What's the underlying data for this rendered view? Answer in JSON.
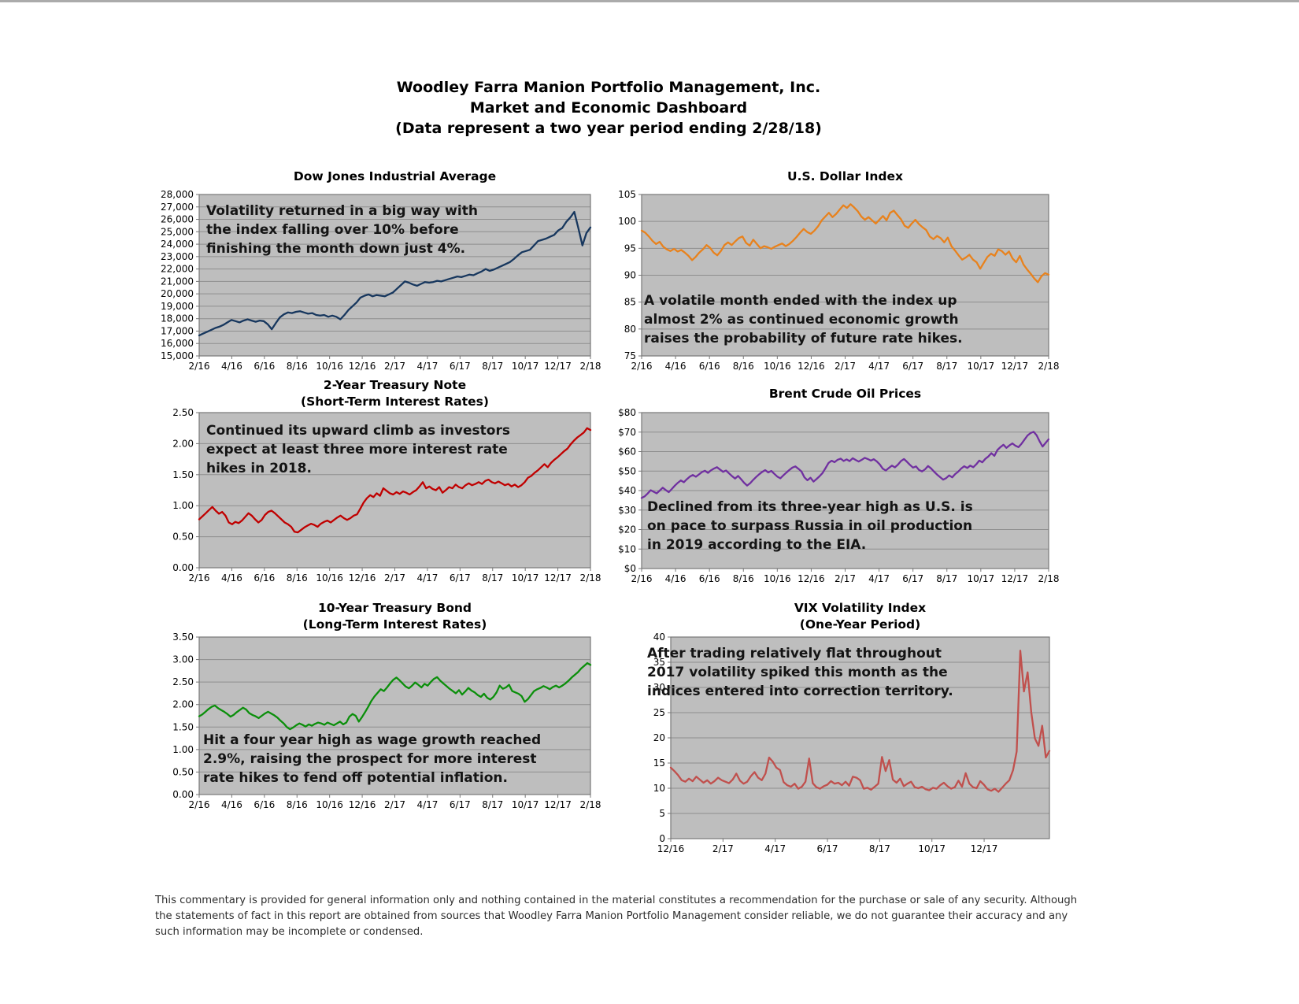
{
  "header": {
    "line1": "Woodley Farra Manion Portfolio Management, Inc.",
    "line2": "Market and Economic Dashboard",
    "line3": "(Data represent a two year period ending 2/28/18)"
  },
  "footer_lines": [
    "This commentary is provided for general information only and nothing contained in the material constitutes a recommendation for the purchase or sale of any security. Although",
    "the statements of fact in this report are obtained from sources that Woodley Farra Manion Portfolio Management consider reliable, we do not guarantee their accuracy and any",
    "such information may be incomplete or condensed."
  ],
  "style": {
    "plot_bg": "#BEBEBE",
    "gridline": "#8E8E8E",
    "plot_border": "#777777",
    "tick": "#777777"
  },
  "chart_data": [
    {
      "type": "line",
      "title": "Dow Jones Industrial Average",
      "annotation_lines": [
        "Volatility returned in a big way with",
        "the index falling over 10% before",
        "finishing the month down just 4%."
      ],
      "color": "#17375E",
      "ylim": [
        15000,
        28000
      ],
      "y_step": 1000,
      "y_format": "comma",
      "x_labels": [
        "2/16",
        "4/16",
        "6/16",
        "8/16",
        "10/16",
        "12/16",
        "2/17",
        "4/17",
        "6/17",
        "8/17",
        "10/17",
        "12/17",
        "2/18"
      ],
      "x_span": "spread",
      "values": [
        16650,
        16800,
        16950,
        17100,
        17250,
        17350,
        17500,
        17700,
        17900,
        17800,
        17700,
        17850,
        17950,
        17850,
        17750,
        17850,
        17800,
        17550,
        17150,
        17650,
        18100,
        18350,
        18500,
        18450,
        18550,
        18600,
        18500,
        18400,
        18450,
        18300,
        18250,
        18300,
        18150,
        18250,
        18150,
        17950,
        18300,
        18700,
        19000,
        19300,
        19700,
        19850,
        19950,
        19800,
        19900,
        19850,
        19800,
        19950,
        20100,
        20400,
        20700,
        21000,
        20900,
        20750,
        20650,
        20800,
        20950,
        20900,
        20950,
        21050,
        21000,
        21100,
        21200,
        21300,
        21400,
        21350,
        21450,
        21550,
        21500,
        21650,
        21800,
        22000,
        21850,
        21950,
        22100,
        22250,
        22400,
        22550,
        22800,
        23100,
        23350,
        23450,
        23550,
        23900,
        24250,
        24350,
        24450,
        24600,
        24750,
        25100,
        25300,
        25800,
        26150,
        26600,
        25300,
        23900,
        24900,
        25350
      ]
    },
    {
      "type": "line",
      "title": "U.S. Dollar Index",
      "annotation_lines": [
        "A volatile month ended with the index up",
        "almost 2% as continued economic growth",
        "raises the probability of future rate hikes."
      ],
      "color": "#E8821D",
      "ylim": [
        75,
        105
      ],
      "y_step": 5,
      "y_format": "int",
      "x_labels": [
        "2/16",
        "4/16",
        "6/16",
        "8/16",
        "10/16",
        "12/16",
        "2/17",
        "4/17",
        "6/17",
        "8/17",
        "10/17",
        "12/17",
        "2/18"
      ],
      "x_span": "spread",
      "values": [
        98.3,
        97.9,
        97.2,
        96.4,
        95.8,
        96.2,
        95.3,
        94.8,
        94.5,
        94.9,
        94.4,
        94.7,
        94.2,
        93.6,
        92.8,
        93.4,
        94.2,
        94.8,
        95.6,
        95.1,
        94.2,
        93.7,
        94.5,
        95.6,
        96.1,
        95.6,
        96.3,
        96.9,
        97.2,
        96.0,
        95.5,
        96.6,
        95.8,
        95.0,
        95.4,
        95.2,
        94.9,
        95.3,
        95.6,
        95.9,
        95.4,
        95.8,
        96.4,
        97.1,
        97.9,
        98.6,
        98.0,
        97.7,
        98.3,
        99.1,
        100.2,
        100.9,
        101.6,
        100.8,
        101.4,
        102.2,
        103.0,
        102.5,
        103.2,
        102.6,
        101.9,
        100.9,
        100.3,
        100.8,
        100.2,
        99.6,
        100.3,
        101.0,
        100.2,
        101.6,
        102.0,
        101.2,
        100.4,
        99.2,
        98.8,
        99.6,
        100.3,
        99.5,
        98.9,
        98.4,
        97.2,
        96.7,
        97.3,
        96.9,
        96.1,
        97.0,
        95.4,
        94.6,
        93.7,
        92.9,
        93.3,
        93.8,
        92.9,
        92.4,
        91.2,
        92.3,
        93.4,
        94.0,
        93.6,
        94.8,
        94.5,
        93.8,
        94.4,
        93.1,
        92.4,
        93.6,
        92.0,
        91.1,
        90.3,
        89.4,
        88.7,
        89.8,
        90.4,
        90.1
      ]
    },
    {
      "type": "line",
      "title": "2-Year Treasury Note",
      "subtitle": "(Short-Term Interest Rates)",
      "annotation_lines": [
        "Continued its upward climb as investors",
        "expect at least three more interest rate",
        "hikes in 2018."
      ],
      "color": "#C00000",
      "ylim": [
        0,
        2.5
      ],
      "y_step": 0.5,
      "y_format": "dec2",
      "x_labels": [
        "2/16",
        "4/16",
        "6/16",
        "8/16",
        "10/16",
        "12/16",
        "2/17",
        "4/17",
        "6/17",
        "8/17",
        "10/17",
        "12/17",
        "2/18"
      ],
      "x_span": "spread",
      "values": [
        0.78,
        0.83,
        0.88,
        0.93,
        0.98,
        0.92,
        0.87,
        0.9,
        0.84,
        0.73,
        0.7,
        0.74,
        0.72,
        0.76,
        0.82,
        0.88,
        0.84,
        0.78,
        0.73,
        0.77,
        0.85,
        0.9,
        0.92,
        0.88,
        0.83,
        0.78,
        0.73,
        0.7,
        0.66,
        0.58,
        0.57,
        0.61,
        0.65,
        0.68,
        0.71,
        0.69,
        0.66,
        0.71,
        0.74,
        0.76,
        0.73,
        0.77,
        0.81,
        0.84,
        0.8,
        0.77,
        0.8,
        0.84,
        0.86,
        0.95,
        1.05,
        1.12,
        1.17,
        1.14,
        1.2,
        1.16,
        1.28,
        1.24,
        1.2,
        1.18,
        1.22,
        1.19,
        1.23,
        1.21,
        1.18,
        1.22,
        1.25,
        1.31,
        1.38,
        1.28,
        1.31,
        1.27,
        1.25,
        1.3,
        1.21,
        1.25,
        1.3,
        1.28,
        1.34,
        1.3,
        1.28,
        1.33,
        1.36,
        1.33,
        1.35,
        1.38,
        1.35,
        1.4,
        1.42,
        1.38,
        1.36,
        1.39,
        1.36,
        1.33,
        1.35,
        1.31,
        1.34,
        1.3,
        1.33,
        1.38,
        1.45,
        1.48,
        1.53,
        1.57,
        1.62,
        1.67,
        1.62,
        1.69,
        1.74,
        1.78,
        1.83,
        1.88,
        1.92,
        1.99,
        2.05,
        2.1,
        2.14,
        2.18,
        2.25,
        2.22
      ]
    },
    {
      "type": "line",
      "title": "Brent Crude Oil Prices",
      "annotation_lines": [
        "Declined from its three-year high as U.S. is",
        "on pace to surpass Russia in oil production",
        "in 2019 according to the EIA."
      ],
      "color": "#7030A0",
      "ylim": [
        0,
        80
      ],
      "y_step": 10,
      "y_format": "usd",
      "x_labels": [
        "2/16",
        "4/16",
        "6/16",
        "8/16",
        "10/16",
        "12/16",
        "2/17",
        "4/17",
        "6/17",
        "8/17",
        "10/17",
        "12/17",
        "2/18"
      ],
      "x_span": "spread",
      "values": [
        36.2,
        37.0,
        38.5,
        40.2,
        39.4,
        38.6,
        40.0,
        41.5,
        40.3,
        39.2,
        40.8,
        42.5,
        44.0,
        45.2,
        44.3,
        45.8,
        47.2,
        48.0,
        47.1,
        48.3,
        49.5,
        50.2,
        49.1,
        50.4,
        51.3,
        52.0,
        50.8,
        49.6,
        50.3,
        48.8,
        47.4,
        46.2,
        47.5,
        45.8,
        44.0,
        42.6,
        43.8,
        45.5,
        47.0,
        48.4,
        49.6,
        50.5,
        49.3,
        50.1,
        48.6,
        47.2,
        46.3,
        47.8,
        49.2,
        50.6,
        51.8,
        52.4,
        51.2,
        49.8,
        46.8,
        45.3,
        46.6,
        44.6,
        45.9,
        47.3,
        49.0,
        51.5,
        54.2,
        55.3,
        54.6,
        55.8,
        56.4,
        55.2,
        56.0,
        55.1,
        56.6,
        55.7,
        54.9,
        55.8,
        56.8,
        56.2,
        55.4,
        56.1,
        55.0,
        53.4,
        51.2,
        50.3,
        51.6,
        52.8,
        51.9,
        53.3,
        55.1,
        56.2,
        54.8,
        53.2,
        51.8,
        52.4,
        50.6,
        49.8,
        50.9,
        52.6,
        51.4,
        49.7,
        48.2,
        46.9,
        45.6,
        46.4,
        47.8,
        46.8,
        48.5,
        49.7,
        51.3,
        52.5,
        51.6,
        52.8,
        52.0,
        53.5,
        55.4,
        54.5,
        56.3,
        57.5,
        59.2,
        57.8,
        60.8,
        62.3,
        63.5,
        61.9,
        63.2,
        64.2,
        63.0,
        62.3,
        64.0,
        66.2,
        68.3,
        69.5,
        70.2,
        68.4,
        65.3,
        62.6,
        64.5,
        66.3
      ]
    },
    {
      "type": "line",
      "title": "10-Year Treasury Bond",
      "subtitle": "(Long-Term Interest Rates)",
      "annotation_lines": [
        "Hit a four year high as wage growth reached",
        "2.9%, raising the prospect for more interest",
        "rate hikes to fend off potential inflation."
      ],
      "color": "#0B8F0B",
      "ylim": [
        0,
        3.5
      ],
      "y_step": 0.5,
      "y_format": "dec2",
      "x_labels": [
        "2/16",
        "4/16",
        "6/16",
        "8/16",
        "10/16",
        "12/16",
        "2/17",
        "4/17",
        "6/17",
        "8/17",
        "10/17",
        "12/17",
        "2/18"
      ],
      "x_span": "spread",
      "values": [
        1.74,
        1.78,
        1.84,
        1.9,
        1.95,
        1.98,
        1.92,
        1.88,
        1.84,
        1.79,
        1.73,
        1.77,
        1.83,
        1.88,
        1.93,
        1.89,
        1.81,
        1.77,
        1.74,
        1.7,
        1.75,
        1.8,
        1.84,
        1.8,
        1.76,
        1.71,
        1.64,
        1.58,
        1.5,
        1.45,
        1.49,
        1.54,
        1.58,
        1.55,
        1.51,
        1.56,
        1.53,
        1.57,
        1.6,
        1.58,
        1.55,
        1.6,
        1.57,
        1.54,
        1.58,
        1.62,
        1.56,
        1.6,
        1.73,
        1.79,
        1.75,
        1.62,
        1.72,
        1.83,
        1.95,
        2.08,
        2.18,
        2.26,
        2.34,
        2.3,
        2.38,
        2.47,
        2.55,
        2.6,
        2.54,
        2.47,
        2.4,
        2.36,
        2.42,
        2.49,
        2.44,
        2.38,
        2.46,
        2.42,
        2.5,
        2.57,
        2.61,
        2.53,
        2.47,
        2.41,
        2.35,
        2.3,
        2.25,
        2.32,
        2.22,
        2.29,
        2.37,
        2.31,
        2.27,
        2.21,
        2.17,
        2.24,
        2.15,
        2.11,
        2.17,
        2.27,
        2.42,
        2.35,
        2.38,
        2.44,
        2.3,
        2.27,
        2.24,
        2.19,
        2.06,
        2.12,
        2.21,
        2.3,
        2.34,
        2.37,
        2.41,
        2.38,
        2.34,
        2.39,
        2.42,
        2.38,
        2.42,
        2.47,
        2.53,
        2.6,
        2.66,
        2.72,
        2.8,
        2.86,
        2.92,
        2.88
      ]
    },
    {
      "type": "line",
      "title": "VIX Volatility Index",
      "subtitle": "(One-Year Period)",
      "annotation_lines": [
        "After trading relatively flat throughout",
        "2017 volatility spiked this month as the",
        "indices entered into correction territory."
      ],
      "color": "#C0504D",
      "ylim": [
        0,
        40
      ],
      "y_step": 5,
      "y_format": "int",
      "x_labels": [
        "12/16",
        "2/17",
        "4/17",
        "6/17",
        "8/17",
        "10/17",
        "12/17"
      ],
      "x_span": "partial",
      "values": [
        14.1,
        13.4,
        12.6,
        11.6,
        11.3,
        11.9,
        11.4,
        12.3,
        11.7,
        11.1,
        11.6,
        10.9,
        11.4,
        12.1,
        11.6,
        11.3,
        11.0,
        11.7,
        12.9,
        11.5,
        10.9,
        11.3,
        12.4,
        13.2,
        12.1,
        11.6,
        12.9,
        16.1,
        15.3,
        14.1,
        13.6,
        11.2,
        10.6,
        10.3,
        10.9,
        9.9,
        10.3,
        11.3,
        15.9,
        11.0,
        10.2,
        9.9,
        10.4,
        10.7,
        11.4,
        10.9,
        11.1,
        10.6,
        11.3,
        10.5,
        12.3,
        12.1,
        11.6,
        9.9,
        10.1,
        9.7,
        10.3,
        10.9,
        16.2,
        13.4,
        15.6,
        11.7,
        11.1,
        11.9,
        10.4,
        10.9,
        11.3,
        10.2,
        10.0,
        10.3,
        9.8,
        9.6,
        10.1,
        9.9,
        10.6,
        11.1,
        10.4,
        9.9,
        10.2,
        11.5,
        10.3,
        13.0,
        10.9,
        10.2,
        10.0,
        11.4,
        10.7,
        9.8,
        9.5,
        9.9,
        9.3,
        10.1,
        10.9,
        11.6,
        13.6,
        17.3,
        37.3,
        29.2,
        33.0,
        25.1,
        19.9,
        18.4,
        22.4,
        16.1,
        17.4
      ]
    }
  ]
}
